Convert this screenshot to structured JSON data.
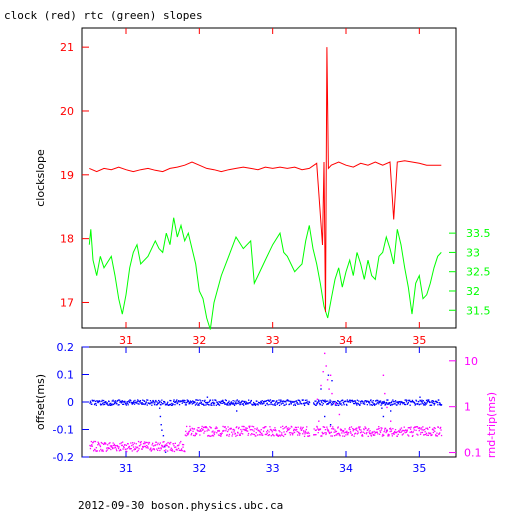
{
  "chart_data": [
    {
      "type": "line",
      "title": "clock (red) rtc (green) slopes",
      "ylabel_left": "clockslope",
      "ylabel_right": "",
      "xlim": [
        30.4,
        35.5
      ],
      "ylim_left": [
        16.6,
        21.3
      ],
      "ylim_right": [
        31.04,
        38.82
      ],
      "x_ticks": [
        "31",
        "32",
        "33",
        "34",
        "35"
      ],
      "y_ticks_left": [
        "17",
        "18",
        "19",
        "20",
        "21"
      ],
      "y_ticks_right": [
        "31.5",
        "32",
        "32.5",
        "33",
        "33.5"
      ],
      "colors": {
        "clock": "#ff0000",
        "rtc": "#00ff00"
      },
      "series": [
        {
          "axis": "left",
          "points": [
            [
              30.5,
              19.1
            ],
            [
              30.6,
              19.05
            ],
            [
              30.7,
              19.1
            ],
            [
              30.8,
              19.08
            ],
            [
              30.9,
              19.12
            ],
            [
              31.0,
              19.08
            ],
            [
              31.1,
              19.05
            ],
            [
              31.2,
              19.08
            ],
            [
              31.3,
              19.1
            ],
            [
              31.4,
              19.07
            ],
            [
              31.5,
              19.05
            ],
            [
              31.6,
              19.1
            ],
            [
              31.7,
              19.12
            ],
            [
              31.8,
              19.15
            ],
            [
              31.9,
              19.2
            ],
            [
              32.0,
              19.15
            ],
            [
              32.1,
              19.1
            ],
            [
              32.2,
              19.08
            ],
            [
              32.3,
              19.05
            ],
            [
              32.4,
              19.08
            ],
            [
              32.5,
              19.1
            ],
            [
              32.6,
              19.12
            ],
            [
              32.7,
              19.1
            ],
            [
              32.8,
              19.08
            ],
            [
              32.9,
              19.12
            ],
            [
              33.0,
              19.1
            ],
            [
              33.1,
              19.12
            ],
            [
              33.2,
              19.1
            ],
            [
              33.3,
              19.12
            ],
            [
              33.4,
              19.08
            ],
            [
              33.5,
              19.1
            ],
            [
              33.6,
              19.18
            ],
            [
              33.68,
              17.9
            ],
            [
              33.7,
              19.2
            ],
            [
              33.72,
              16.85
            ],
            [
              33.74,
              21.0
            ],
            [
              33.76,
              19.1
            ],
            [
              33.8,
              19.15
            ],
            [
              33.9,
              19.2
            ],
            [
              34.0,
              19.15
            ],
            [
              34.1,
              19.12
            ],
            [
              34.2,
              19.18
            ],
            [
              34.3,
              19.15
            ],
            [
              34.4,
              19.2
            ],
            [
              34.5,
              19.15
            ],
            [
              34.6,
              19.2
            ],
            [
              34.65,
              18.3
            ],
            [
              34.7,
              19.2
            ],
            [
              34.8,
              19.22
            ],
            [
              34.9,
              19.2
            ],
            [
              35.0,
              19.18
            ],
            [
              35.1,
              19.15
            ],
            [
              35.2,
              19.15
            ],
            [
              35.3,
              19.15
            ]
          ]
        },
        {
          "axis": "right",
          "points": [
            [
              30.5,
              33.2
            ],
            [
              30.52,
              33.6
            ],
            [
              30.55,
              32.8
            ],
            [
              30.6,
              32.4
            ],
            [
              30.65,
              32.9
            ],
            [
              30.7,
              32.6
            ],
            [
              30.8,
              32.9
            ],
            [
              30.85,
              32.4
            ],
            [
              30.9,
              31.8
            ],
            [
              30.95,
              31.4
            ],
            [
              31.0,
              31.9
            ],
            [
              31.05,
              32.6
            ],
            [
              31.1,
              33.0
            ],
            [
              31.15,
              33.2
            ],
            [
              31.2,
              32.7
            ],
            [
              31.3,
              32.9
            ],
            [
              31.4,
              33.3
            ],
            [
              31.45,
              33.1
            ],
            [
              31.5,
              33.0
            ],
            [
              31.55,
              33.5
            ],
            [
              31.6,
              33.2
            ],
            [
              31.65,
              33.9
            ],
            [
              31.7,
              33.4
            ],
            [
              31.75,
              33.7
            ],
            [
              31.8,
              33.3
            ],
            [
              31.85,
              33.5
            ],
            [
              31.9,
              33.1
            ],
            [
              31.95,
              32.7
            ],
            [
              32.0,
              32.0
            ],
            [
              32.05,
              31.8
            ],
            [
              32.1,
              31.3
            ],
            [
              32.15,
              31.0
            ],
            [
              32.2,
              31.7
            ],
            [
              32.3,
              32.4
            ],
            [
              32.4,
              32.9
            ],
            [
              32.5,
              33.4
            ],
            [
              32.6,
              33.1
            ],
            [
              32.7,
              33.3
            ],
            [
              32.75,
              32.2
            ],
            [
              32.8,
              32.4
            ],
            [
              32.9,
              32.8
            ],
            [
              33.0,
              33.2
            ],
            [
              33.1,
              33.5
            ],
            [
              33.15,
              33.0
            ],
            [
              33.2,
              32.9
            ],
            [
              33.3,
              32.5
            ],
            [
              33.35,
              32.6
            ],
            [
              33.4,
              32.7
            ],
            [
              33.45,
              33.3
            ],
            [
              33.5,
              33.7
            ],
            [
              33.55,
              33.1
            ],
            [
              33.6,
              32.7
            ],
            [
              33.65,
              32.2
            ],
            [
              33.7,
              31.6
            ],
            [
              33.75,
              31.3
            ],
            [
              33.8,
              31.8
            ],
            [
              33.85,
              32.3
            ],
            [
              33.9,
              32.6
            ],
            [
              33.95,
              32.1
            ],
            [
              34.0,
              32.5
            ],
            [
              34.05,
              32.8
            ],
            [
              34.1,
              32.4
            ],
            [
              34.15,
              33.0
            ],
            [
              34.2,
              32.7
            ],
            [
              34.25,
              32.3
            ],
            [
              34.3,
              32.8
            ],
            [
              34.35,
              32.4
            ],
            [
              34.4,
              32.3
            ],
            [
              34.45,
              32.9
            ],
            [
              34.5,
              33.0
            ],
            [
              34.55,
              33.4
            ],
            [
              34.6,
              33.1
            ],
            [
              34.65,
              32.7
            ],
            [
              34.7,
              33.6
            ],
            [
              34.75,
              33.2
            ],
            [
              34.8,
              32.6
            ],
            [
              34.85,
              32.1
            ],
            [
              34.9,
              31.4
            ],
            [
              34.95,
              32.2
            ],
            [
              35.0,
              32.4
            ],
            [
              35.05,
              31.8
            ],
            [
              35.1,
              31.9
            ],
            [
              35.15,
              32.2
            ],
            [
              35.2,
              32.6
            ],
            [
              35.25,
              32.9
            ],
            [
              35.3,
              33.0
            ]
          ]
        }
      ]
    },
    {
      "type": "scatter",
      "ylabel_left": "offset(ms)",
      "ylabel_right": "rnd-trip(ms)",
      "xlim": [
        30.4,
        35.5
      ],
      "ylim_left": [
        -0.2,
        0.2
      ],
      "y_right_scale": "log",
      "ylim_right": [
        0.08,
        20
      ],
      "x_ticks": [
        "31",
        "32",
        "33",
        "34",
        "35"
      ],
      "y_ticks_left": [
        "0.2",
        "0.1",
        "0",
        "-0.1",
        "-0.2"
      ],
      "y_ticks_right": [
        "10",
        "1",
        "0.1"
      ],
      "colors": {
        "offset": "#0000ff",
        "rndtrip": "#ff00ff"
      },
      "series": [
        {
          "axis": "left",
          "segments": [
            [
              30.5,
              33.5,
              0.0
            ],
            [
              33.55,
              35.3,
              0.0
            ]
          ],
          "outliers": [
            [
              31.45,
              -0.02
            ],
            [
              31.46,
              -0.05
            ],
            [
              31.47,
              -0.08
            ],
            [
              31.48,
              -0.1
            ],
            [
              31.5,
              -0.12
            ],
            [
              31.52,
              -0.16
            ],
            [
              31.53,
              -0.18
            ],
            [
              32.1,
              0.02
            ],
            [
              32.5,
              -0.03
            ],
            [
              33.65,
              0.05
            ],
            [
              33.7,
              -0.05
            ],
            [
              33.75,
              0.1
            ],
            [
              33.78,
              -0.08
            ],
            [
              33.8,
              0.08
            ],
            [
              34.48,
              -0.02
            ],
            [
              34.5,
              -0.05
            ],
            [
              34.55,
              -0.1
            ],
            [
              34.6,
              -0.03
            ],
            [
              35.0,
              0.02
            ]
          ]
        },
        {
          "axis": "right",
          "segments": [
            [
              30.5,
              31.8,
              0.14
            ],
            [
              31.8,
              33.5,
              0.3
            ],
            [
              33.55,
              35.3,
              0.3
            ]
          ],
          "outliers": [
            [
              33.6,
              1.5
            ],
            [
              33.65,
              3.0
            ],
            [
              33.68,
              6.0
            ],
            [
              33.7,
              15.0
            ],
            [
              33.72,
              8.0
            ],
            [
              33.74,
              4.0
            ],
            [
              33.76,
              2.5
            ],
            [
              33.78,
              5.0
            ],
            [
              33.8,
              2.0
            ],
            [
              33.85,
              1.2
            ],
            [
              33.62,
              0.5
            ],
            [
              33.9,
              0.7
            ],
            [
              34.5,
              5.0
            ],
            [
              34.52,
              2.0
            ],
            [
              34.55,
              1.0
            ],
            [
              34.6,
              0.5
            ]
          ]
        }
      ]
    }
  ],
  "footer": "2012-09-30 boson.physics.ubc.ca"
}
